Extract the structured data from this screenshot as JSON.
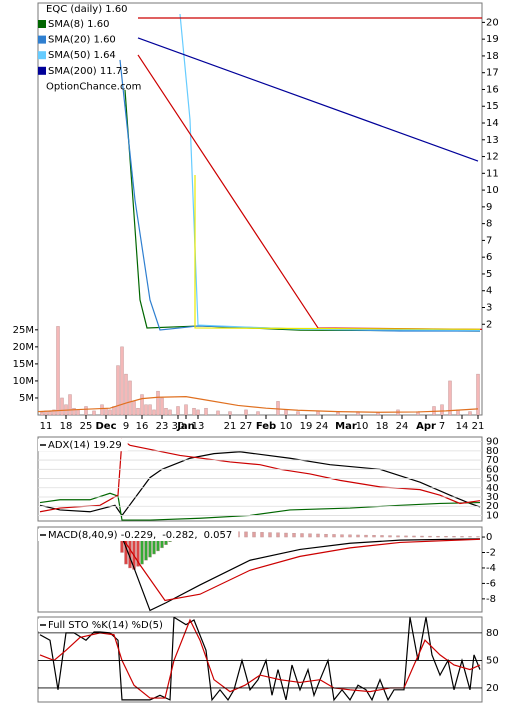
{
  "chart_data": [
    {
      "type": "line",
      "title": "EQC (daily) 1.60",
      "annotation": "OptionChance.com",
      "legend": "upper left",
      "legend_layout": "column",
      "yaxis": "right",
      "xlim": [
        0,
        111
      ],
      "ylim": [
        1.3,
        20.5
      ],
      "xticks": [
        {
          "value": 2,
          "label": "11"
        },
        {
          "value": 7,
          "label": "18"
        },
        {
          "value": 12,
          "label": "25"
        },
        {
          "value": 17,
          "label": "Dec"
        },
        {
          "value": 22,
          "label": "9"
        },
        {
          "value": 26,
          "label": "16"
        },
        {
          "value": 31,
          "label": "23"
        },
        {
          "value": 35,
          "label": "30"
        },
        {
          "value": 37,
          "label": "Jan"
        },
        {
          "value": 40,
          "label": "13"
        },
        {
          "value": 48,
          "label": "21"
        },
        {
          "value": 52,
          "label": "27"
        },
        {
          "value": 57,
          "label": "Feb"
        },
        {
          "value": 62,
          "label": "10"
        },
        {
          "value": 67,
          "label": "19"
        },
        {
          "value": 71,
          "label": "24"
        },
        {
          "value": 77,
          "label": "Mar"
        },
        {
          "value": 81,
          "label": "10"
        },
        {
          "value": 86,
          "label": "18"
        },
        {
          "value": 91,
          "label": "24"
        },
        {
          "value": 97,
          "label": "Apr"
        },
        {
          "value": 101,
          "label": "7"
        },
        {
          "value": 106,
          "label": "14"
        },
        {
          "value": 110,
          "label": "21"
        }
      ],
      "yticks": [
        2,
        3,
        4,
        5,
        6,
        7,
        8,
        9,
        10,
        11,
        12,
        13,
        14,
        15,
        16,
        17,
        18,
        19,
        20
      ],
      "series": [
        {
          "name": "SMA(8) 1.60",
          "color": "#006600",
          "x": [
            21.75,
            23.75,
            25.5,
            27.25,
            40.5,
            65.5,
            110.5
          ],
          "values": [
            15.97,
            9.4,
            3.45,
            1.78,
            1.9,
            1.65,
            1.6
          ]
        },
        {
          "name": "SMA(20) 1.60",
          "color": "#2f7fd0",
          "x": [
            20.5,
            24.25,
            28,
            30.5,
            35.5,
            40,
            65.5,
            90.5,
            110.5
          ],
          "values": [
            17.76,
            9.4,
            3.45,
            1.66,
            1.78,
            1.9,
            1.72,
            1.6,
            1.6
          ]
        },
        {
          "name": "SMA(50) 1.64",
          "color": "#66ccff",
          "x": [
            35.5,
            38,
            40,
            65.5,
            110.5
          ],
          "values": [
            20.5,
            14.2,
            1.95,
            1.7,
            1.64
          ]
        },
        {
          "name": "SMA(200) 11.73",
          "color": "#000099",
          "x": [
            25,
            110
          ],
          "values": [
            19.07,
            11.73
          ]
        },
        {
          "color": "#cc0000",
          "x": [
            25,
            111
          ],
          "values": [
            20.26,
            20.26
          ]
        },
        {
          "color": "#cc0000",
          "x": [
            25,
            70,
            111
          ],
          "values": [
            18.06,
            1.78,
            1.7
          ]
        },
        {
          "color": "#e8e800",
          "x": [
            39.25,
            39.25,
            110.5
          ],
          "values": [
            10.9,
            1.78,
            1.7
          ]
        }
      ]
    },
    {
      "type": "bar",
      "yaxis": "left",
      "xlim": [
        0,
        111
      ],
      "ylim": [
        0,
        27000000
      ],
      "yticks": [
        {
          "value": 5000000,
          "label": "5M"
        },
        {
          "value": 10000000,
          "label": "10M"
        },
        {
          "value": 15000000,
          "label": "15M"
        },
        {
          "value": 20000000,
          "label": "20M"
        },
        {
          "value": 25000000,
          "label": "25M"
        }
      ],
      "color": "#f4b8b8",
      "x": [
        1,
        2,
        3,
        4,
        5,
        6,
        7,
        8,
        9,
        10,
        12,
        14,
        16,
        17,
        18,
        19,
        20,
        21,
        22,
        23,
        24,
        25,
        26,
        27,
        28,
        29,
        30,
        31,
        32,
        33,
        35,
        37,
        39,
        40,
        42,
        45,
        48,
        52,
        55,
        60,
        62,
        65,
        70,
        75,
        80,
        85,
        90,
        95,
        99,
        101,
        103,
        105,
        108,
        110
      ],
      "values": [
        800000,
        1200000,
        1000000,
        1500000,
        26000000,
        5000000,
        3000000,
        6000000,
        2000000,
        1500000,
        2500000,
        1200000,
        3000000,
        2000000,
        1500000,
        2500000,
        14500000,
        20000000,
        12000000,
        10000000,
        4000000,
        2000000,
        6000000,
        3000000,
        3000000,
        1500000,
        7000000,
        5000000,
        2000000,
        1500000,
        2500000,
        3000000,
        2000000,
        1500000,
        2000000,
        1200000,
        1000000,
        1500000,
        1000000,
        4000000,
        1500000,
        1000000,
        1200000,
        800000,
        1000000,
        800000,
        1500000,
        1000000,
        2500000,
        3000000,
        10000000,
        1500000,
        1000000,
        12000000
      ],
      "overlay": {
        "color": "#e07020",
        "x": [
          0,
          10,
          18,
          22,
          26,
          30,
          37,
          42,
          50,
          57,
          65,
          75,
          85,
          95,
          102,
          110
        ],
        "values": [
          1000000,
          1600000,
          2000000,
          3500000,
          4800000,
          5200000,
          5400000,
          4400000,
          2800000,
          2000000,
          1400000,
          1000000,
          800000,
          900000,
          1200000,
          1800000
        ]
      }
    },
    {
      "type": "line",
      "legend": "upper left",
      "legend_layout": "row",
      "yaxis": "right",
      "grid": true,
      "grid_color": "#dddddd",
      "xlim": [
        0,
        111
      ],
      "ylim": [
        4,
        95
      ],
      "yticks": [
        10,
        20,
        30,
        40,
        50,
        60,
        70,
        80,
        90
      ],
      "series": [
        {
          "name": "ADX(14) 19.29",
          "color": "#000000",
          "x": [
            0.5,
            5.5,
            13,
            19.25,
            21,
            28,
            31,
            38,
            44,
            50.5,
            63,
            73,
            85.5,
            95.5,
            103,
            108,
            110.5
          ],
          "values": [
            21,
            16,
            14,
            21,
            10,
            51,
            60,
            72,
            77,
            79,
            72,
            65,
            60,
            46,
            32,
            23,
            19.29
          ]
        },
        {
          "color": "#006600",
          "x": [
            0.5,
            5.5,
            13,
            18,
            20,
            21,
            28,
            40.5,
            53,
            63,
            78,
            90.5,
            100.5,
            110.5
          ],
          "values": [
            24,
            27,
            27,
            34,
            31,
            5,
            5,
            7,
            10,
            16,
            18,
            21,
            23,
            24
          ]
        },
        {
          "color": "#cc0000",
          "x": [
            0.5,
            5.5,
            15.5,
            20,
            21,
            23,
            35.5,
            48,
            55.5,
            60.5,
            68,
            75.5,
            85.5,
            95.5,
            100.5,
            105.5,
            110.5
          ],
          "values": [
            14,
            18,
            21,
            32,
            92,
            86,
            75,
            68,
            65,
            60,
            55,
            48,
            41,
            38,
            32,
            23,
            26
          ]
        }
      ]
    },
    {
      "type": "line",
      "legend": "upper left",
      "legend_layout": "row",
      "yaxis": "right",
      "xlim": [
        0,
        111
      ],
      "ylim": [
        -9.7,
        1.3
      ],
      "yticks": [
        0,
        -2,
        -4,
        -6,
        -8
      ],
      "series": [
        {
          "name": "MACD(8,40,9) -0.229,",
          "color": "#000000",
          "x": [
            21,
            24,
            28,
            32,
            40.5,
            53,
            65.5,
            78,
            90.5,
            110.5
          ],
          "values": [
            0,
            -4,
            -9.5,
            -8.5,
            -6.2,
            -3,
            -1.6,
            -0.8,
            -0.4,
            -0.229
          ]
        },
        {
          "name": "-0.282,",
          "color": "#cc0000",
          "x": [
            21,
            25.5,
            31.75,
            40.5,
            53,
            65.5,
            78,
            90.5,
            110.5
          ],
          "values": [
            0,
            -3.6,
            -8.2,
            -7.4,
            -4.3,
            -2.5,
            -1.4,
            -0.7,
            -0.282
          ]
        }
      ],
      "histogram": {
        "name": "0.057",
        "color": "#3366cc",
        "groups": [
          {
            "color": "#dd4444",
            "x": [
              21,
              22,
              23,
              24,
              25
            ],
            "values": [
              -2,
              -3.5,
              -4,
              -4.2,
              -3.8
            ]
          },
          {
            "color": "#33aa33",
            "x": [
              26,
              27,
              28,
              29,
              30,
              31,
              32,
              33
            ],
            "values": [
              -3.5,
              -3,
              -2.6,
              -2.2,
              -1.8,
              -1.4,
              -1,
              -0.6
            ]
          },
          {
            "color": "#e0a0a0",
            "x": [
              40,
              42,
              44,
              46,
              48,
              50,
              52,
              54,
              56,
              58,
              60,
              62,
              64,
              66,
              68,
              70,
              72,
              74,
              76,
              78,
              80,
              82,
              84,
              86,
              88,
              90,
              92,
              94,
              96,
              98,
              100,
              102,
              104,
              106,
              108,
              110
            ],
            "values": [
              0.8,
              0.78,
              0.76,
              0.74,
              0.72,
              0.7,
              0.67,
              0.64,
              0.61,
              0.58,
              0.55,
              0.52,
              0.49,
              0.46,
              0.43,
              0.4,
              0.37,
              0.34,
              0.31,
              0.29,
              0.27,
              0.25,
              0.23,
              0.21,
              0.19,
              0.17,
              0.15,
              0.14,
              0.13,
              0.12,
              0.11,
              0.1,
              0.09,
              0.08,
              0.07,
              0.057
            ]
          }
        ]
      }
    },
    {
      "type": "line",
      "title": "Full STO %K(14) %D(5)",
      "legend": "upper left",
      "legend_layout": "row",
      "yaxis": "right",
      "grid": true,
      "grid_color": "#000000",
      "xlim": [
        0,
        111
      ],
      "ylim": [
        4.7,
        97.3
      ],
      "yticks": [
        80,
        50,
        20
      ],
      "series": [
        {
          "color": "#000000",
          "x": [
            0.5,
            3,
            5,
            7,
            9,
            12,
            14,
            15.5,
            18,
            20,
            21,
            23,
            25,
            28,
            30.5,
            33,
            34,
            37,
            39,
            42,
            43.5,
            45.5,
            47.5,
            49,
            51,
            53,
            55,
            57,
            58.5,
            60,
            62,
            63.5,
            65.5,
            67.5,
            69,
            70.5,
            72.5,
            74,
            76,
            78,
            80,
            82,
            83.5,
            85.5,
            87.5,
            89,
            91.5,
            93,
            95,
            97,
            98.5,
            100.5,
            102.5,
            104,
            106,
            108,
            109,
            110.5
          ],
          "values": [
            78,
            72,
            18,
            80,
            80,
            72,
            81,
            81,
            80,
            72,
            7,
            7,
            7,
            7,
            12,
            7,
            97,
            89,
            94,
            61,
            7,
            18,
            7,
            18,
            50,
            18,
            29,
            50,
            12,
            40,
            7,
            45,
            18,
            40,
            12,
            29,
            50,
            7,
            18,
            7,
            23,
            18,
            7,
            29,
            7,
            18,
            18,
            97,
            50,
            97,
            56,
            34,
            50,
            18,
            50,
            18,
            56,
            40
          ]
        },
        {
          "color": "#cc0000",
          "x": [
            0.5,
            4,
            7,
            10.5,
            15.5,
            19,
            21,
            24,
            28,
            31.75,
            34,
            38,
            40.5,
            44,
            48,
            51.75,
            55.5,
            60.5,
            65.5,
            70.5,
            74,
            78,
            83,
            88,
            91.5,
            94,
            96.75,
            100.5,
            104,
            108,
            110.5
          ],
          "values": [
            56,
            50,
            61,
            75,
            80,
            78,
            50,
            23,
            9,
            9,
            50,
            94,
            72,
            29,
            16,
            23,
            34,
            29,
            26,
            29,
            20,
            18,
            16,
            20,
            20,
            45,
            72,
            56,
            45,
            40,
            45
          ]
        }
      ]
    }
  ]
}
